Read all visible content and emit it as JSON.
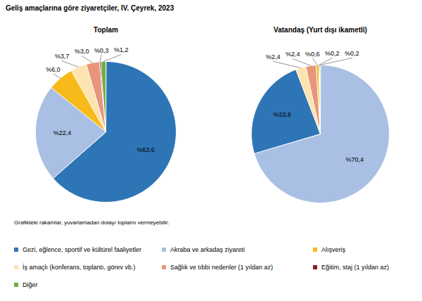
{
  "title": "Geliş amaçlarına göre ziyaretçiler, IV. Çeyrek, 2023",
  "annotations": [
    "Grafikteki rakamlar, yuvarlamadan dolayı toplamı vermeyebilir."
  ],
  "chart_data": [
    {
      "type": "pie",
      "title": "Toplam",
      "categories": [
        "Gezi, eğlence, sportif ve kültürel faaliyetler",
        "Akraba ve arkadaş ziyareti",
        "Alışveriş",
        "İş amaçlı (konferans, toplantı, görev vb.)",
        "Sağlık ve tıbbi nedenler (1 yıldan az)",
        "Eğitim, staj (1 yıldan az)",
        "Diğer"
      ],
      "values": [
        63.6,
        22.4,
        6.0,
        3.7,
        3.0,
        0.3,
        1.2
      ],
      "value_labels": [
        "%63,6",
        "%22,4",
        "%6,0",
        "%3,7",
        "%3,0",
        "%0,3",
        "%1,2"
      ],
      "colors": [
        "#2e75b6",
        "#a9c0e4",
        "#f6bb1a",
        "#fde3ad",
        "#e8957b",
        "#8b1a1a",
        "#71ad47"
      ],
      "data_labels": true,
      "legend": "bottom"
    },
    {
      "type": "pie",
      "title": "Vatandaş (Yurt dışı ikametli)",
      "categories": [
        "Akraba ve arkadaş ziyareti",
        "Gezi, eğlence, sportif ve kültürel faaliyetler",
        "İş amaçlı (konferans, toplantı, görev vb.)",
        "Sağlık ve tıbbi nedenler (1 yıldan az)",
        "Alışveriş",
        "Eğitim, staj (1 yıldan az)",
        "Diğer"
      ],
      "values": [
        70.4,
        23.8,
        2.4,
        2.4,
        0.6,
        0.2,
        0.2
      ],
      "value_labels": [
        "%70,4",
        "%23,8",
        "%2,4",
        "%2,4",
        "%0,6",
        "%0,2",
        "%0,2"
      ],
      "colors": [
        "#a9c0e4",
        "#2e75b6",
        "#fde3ad",
        "#e8957b",
        "#f6bb1a",
        "#8b1a1a",
        "#71ad47"
      ],
      "data_labels": true
    }
  ]
}
